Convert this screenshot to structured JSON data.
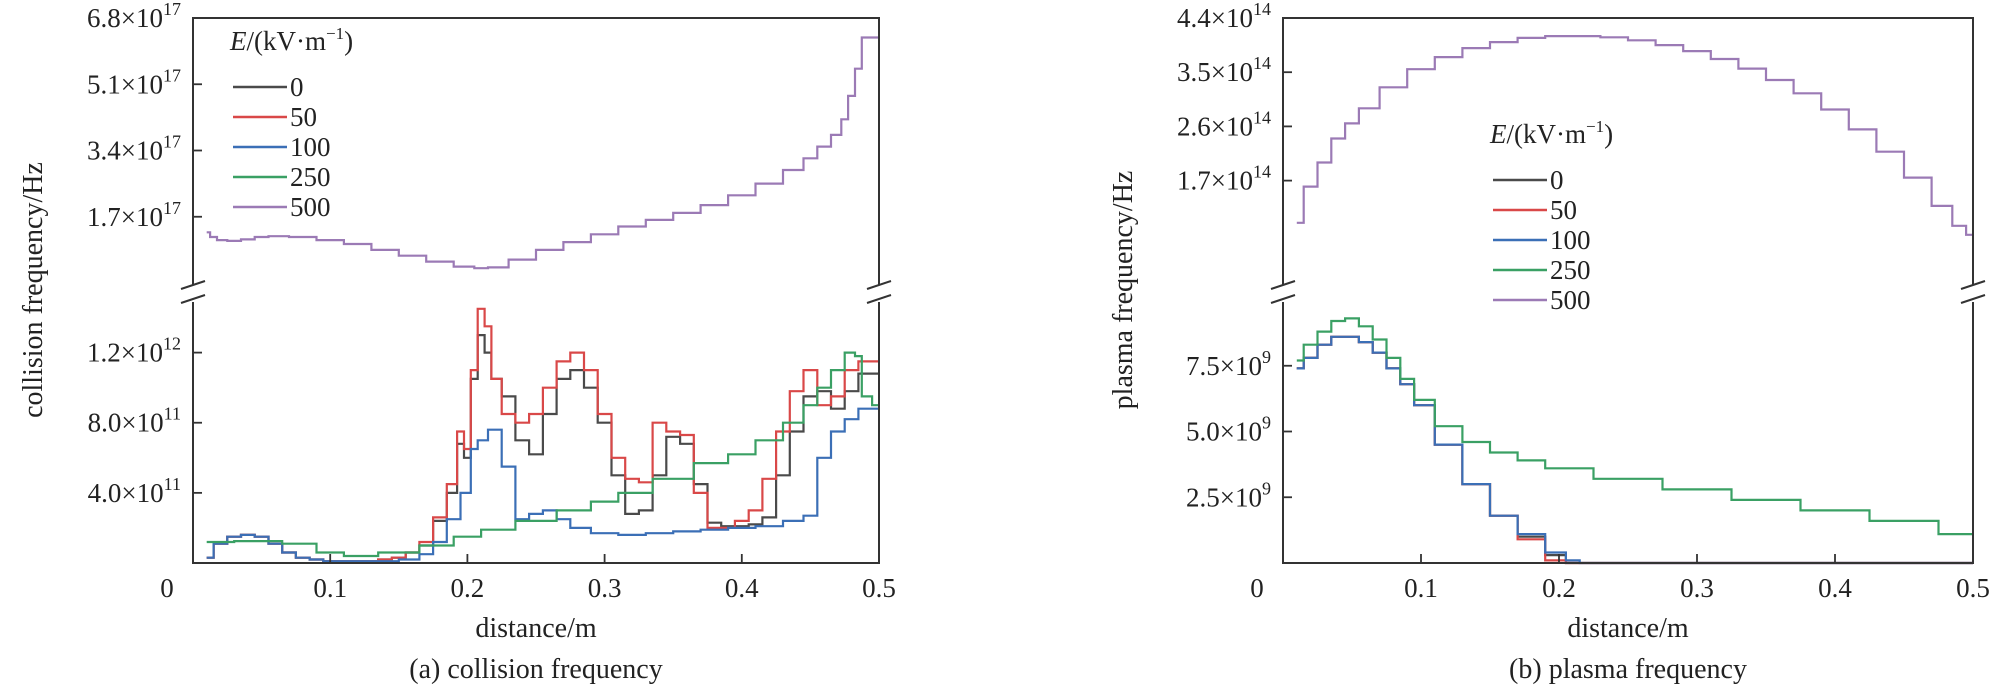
{
  "chart_data": [
    {
      "type": "line",
      "caption": "(a) collision frequency",
      "xlabel": "distance/m",
      "ylabel": "collision frequency/Hz",
      "xlim": [
        0,
        0.5
      ],
      "x_ticks": [
        "0",
        "0.1",
        "0.2",
        "0.3",
        "0.4",
        "0.5"
      ],
      "y_axis_break": true,
      "upper": {
        "ylim": [
          0,
          6.8e+17
        ],
        "y_ticks": [
          {
            "m": "1.7",
            "e": "17"
          },
          {
            "m": "3.4",
            "e": "17"
          },
          {
            "m": "5.1",
            "e": "17"
          },
          {
            "m": "6.8",
            "e": "17"
          }
        ]
      },
      "lower": {
        "ylim": [
          0,
          1500000000000.0
        ],
        "y_ticks": [
          {
            "m": "4.0",
            "e": "11"
          },
          {
            "m": "8.0",
            "e": "11"
          },
          {
            "m": "1.2",
            "e": "12"
          }
        ]
      },
      "legend": {
        "title_var": "E",
        "title_unit": "/(kV·m",
        "title_exp": "−1",
        "title_close": ")",
        "placement": "top-left"
      },
      "series": [
        {
          "name": "0",
          "color": "#4a4a4a",
          "panel": "lower",
          "x": [
            0.01,
            0.02,
            0.03,
            0.04,
            0.05,
            0.06,
            0.07,
            0.08,
            0.09,
            0.1,
            0.11,
            0.12,
            0.13,
            0.14,
            0.15,
            0.16,
            0.17,
            0.18,
            0.19,
            0.195,
            0.2,
            0.205,
            0.21,
            0.215,
            0.22,
            0.23,
            0.24,
            0.25,
            0.26,
            0.27,
            0.28,
            0.29,
            0.3,
            0.31,
            0.32,
            0.33,
            0.34,
            0.35,
            0.36,
            0.37,
            0.38,
            0.39,
            0.4,
            0.41,
            0.42,
            0.43,
            0.44,
            0.45,
            0.46,
            0.47,
            0.48,
            0.49,
            0.5
          ],
          "y": [
            30000000000.0,
            110000000000.0,
            150000000000.0,
            160000000000.0,
            150000000000.0,
            110000000000.0,
            60000000000.0,
            30000000000.0,
            20000000000.0,
            10000000000.0,
            10000000000.0,
            10000000000.0,
            10000000000.0,
            20000000000.0,
            30000000000.0,
            60000000000.0,
            100000000000.0,
            240000000000.0,
            400000000000.0,
            680000000000.0,
            600000000000.0,
            1050000000000.0,
            1300000000000.0,
            1200000000000.0,
            1050000000000.0,
            950000000000.0,
            700000000000.0,
            620000000000.0,
            850000000000.0,
            1050000000000.0,
            1100000000000.0,
            1000000000000.0,
            800000000000.0,
            500000000000.0,
            280000000000.0,
            300000000000.0,
            500000000000.0,
            720000000000.0,
            680000000000.0,
            450000000000.0,
            230000000000.0,
            210000000000.0,
            210000000000.0,
            220000000000.0,
            260000000000.0,
            500000000000.0,
            750000000000.0,
            950000000000.0,
            980000000000.0,
            880000000000.0,
            980000000000.0,
            1080000000000.0,
            1080000000000.0
          ]
        },
        {
          "name": "50",
          "color": "#d94848",
          "panel": "lower",
          "x": [
            0.01,
            0.02,
            0.03,
            0.04,
            0.05,
            0.06,
            0.07,
            0.08,
            0.09,
            0.1,
            0.11,
            0.12,
            0.13,
            0.14,
            0.15,
            0.16,
            0.17,
            0.18,
            0.19,
            0.195,
            0.2,
            0.205,
            0.21,
            0.215,
            0.22,
            0.23,
            0.24,
            0.25,
            0.26,
            0.27,
            0.28,
            0.29,
            0.3,
            0.31,
            0.32,
            0.33,
            0.34,
            0.35,
            0.36,
            0.37,
            0.38,
            0.39,
            0.4,
            0.41,
            0.42,
            0.43,
            0.44,
            0.45,
            0.46,
            0.47,
            0.48,
            0.49,
            0.5
          ],
          "y": [
            30000000000.0,
            110000000000.0,
            150000000000.0,
            160000000000.0,
            150000000000.0,
            110000000000.0,
            60000000000.0,
            30000000000.0,
            20000000000.0,
            10000000000.0,
            10000000000.0,
            10000000000.0,
            10000000000.0,
            20000000000.0,
            30000000000.0,
            60000000000.0,
            120000000000.0,
            260000000000.0,
            450000000000.0,
            750000000000.0,
            650000000000.0,
            1100000000000.0,
            1450000000000.0,
            1350000000000.0,
            1050000000000.0,
            850000000000.0,
            800000000000.0,
            850000000000.0,
            1000000000000.0,
            1150000000000.0,
            1200000000000.0,
            1100000000000.0,
            850000000000.0,
            600000000000.0,
            480000000000.0,
            460000000000.0,
            800000000000.0,
            750000000000.0,
            730000000000.0,
            400000000000.0,
            200000000000.0,
            200000000000.0,
            240000000000.0,
            300000000000.0,
            480000000000.0,
            750000000000.0,
            980000000000.0,
            1100000000000.0,
            900000000000.0,
            950000000000.0,
            1100000000000.0,
            1150000000000.0,
            1150000000000.0
          ]
        },
        {
          "name": "100",
          "color": "#3b6fb6",
          "panel": "lower",
          "x": [
            0.01,
            0.02,
            0.03,
            0.04,
            0.05,
            0.06,
            0.07,
            0.08,
            0.09,
            0.1,
            0.12,
            0.14,
            0.16,
            0.17,
            0.18,
            0.19,
            0.2,
            0.205,
            0.21,
            0.22,
            0.23,
            0.24,
            0.25,
            0.26,
            0.27,
            0.28,
            0.3,
            0.32,
            0.34,
            0.36,
            0.38,
            0.4,
            0.42,
            0.44,
            0.45,
            0.46,
            0.47,
            0.48,
            0.49,
            0.5
          ],
          "y": [
            30000000000.0,
            110000000000.0,
            150000000000.0,
            160000000000.0,
            150000000000.0,
            110000000000.0,
            60000000000.0,
            30000000000.0,
            20000000000.0,
            10000000000.0,
            10000000000.0,
            10000000000.0,
            20000000000.0,
            50000000000.0,
            120000000000.0,
            250000000000.0,
            400000000000.0,
            650000000000.0,
            700000000000.0,
            760000000000.0,
            550000000000.0,
            250000000000.0,
            280000000000.0,
            300000000000.0,
            250000000000.0,
            200000000000.0,
            170000000000.0,
            160000000000.0,
            170000000000.0,
            180000000000.0,
            190000000000.0,
            200000000000.0,
            210000000000.0,
            240000000000.0,
            270000000000.0,
            600000000000.0,
            750000000000.0,
            820000000000.0,
            880000000000.0,
            880000000000.0
          ]
        },
        {
          "name": "250",
          "color": "#3aa064",
          "panel": "lower",
          "x": [
            0.01,
            0.05,
            0.08,
            0.1,
            0.12,
            0.15,
            0.18,
            0.2,
            0.22,
            0.25,
            0.28,
            0.3,
            0.32,
            0.35,
            0.38,
            0.4,
            0.42,
            0.44,
            0.45,
            0.46,
            0.47,
            0.48,
            0.485,
            0.49,
            0.5
          ],
          "y": [
            120000000000.0,
            125000000000.0,
            110000000000.0,
            60000000000.0,
            40000000000.0,
            60000000000.0,
            100000000000.0,
            150000000000.0,
            190000000000.0,
            240000000000.0,
            300000000000.0,
            350000000000.0,
            400000000000.0,
            480000000000.0,
            570000000000.0,
            620000000000.0,
            700000000000.0,
            800000000000.0,
            900000000000.0,
            1000000000000.0,
            1100000000000.0,
            1200000000000.0,
            1180000000000.0,
            950000000000.0,
            900000000000.0
          ]
        },
        {
          "name": "500",
          "color": "#9b7ab5",
          "panel": "upper",
          "x": [
            0.01,
            0.015,
            0.02,
            0.03,
            0.04,
            0.05,
            0.06,
            0.08,
            0.1,
            0.12,
            0.14,
            0.16,
            0.18,
            0.2,
            0.21,
            0.22,
            0.24,
            0.26,
            0.28,
            0.3,
            0.32,
            0.34,
            0.36,
            0.38,
            0.4,
            0.42,
            0.44,
            0.45,
            0.46,
            0.47,
            0.475,
            0.48,
            0.485,
            0.49,
            0.5
          ],
          "y": [
            1.3e+17,
            1.18e+17,
            1.1e+17,
            1.08e+17,
            1.12e+17,
            1.18e+17,
            1.2e+17,
            1.18e+17,
            1.1e+17,
            1e+17,
            8.5e+16,
            7e+16,
            5.5e+16,
            4.2e+16,
            3.8e+16,
            4e+16,
            6e+16,
            8.5e+16,
            1.05e+17,
            1.25e+17,
            1.45e+17,
            1.62e+17,
            1.8e+17,
            2e+17,
            2.25e+17,
            2.55e+17,
            2.9e+17,
            3.2e+17,
            3.5e+17,
            3.8e+17,
            4.2e+17,
            4.8e+17,
            5.5e+17,
            6.3e+17,
            6.3e+17
          ]
        }
      ]
    },
    {
      "type": "line",
      "caption": "(b) plasma frequency",
      "xlabel": "distance/m",
      "ylabel": "plasma frequency/Hz",
      "xlim": [
        0,
        0.5
      ],
      "x_ticks": [
        "0",
        "0.1",
        "0.2",
        "0.3",
        "0.4",
        "0.5"
      ],
      "y_axis_break": true,
      "upper": {
        "ylim": [
          0,
          440000000000000.0
        ],
        "y_ticks": [
          {
            "m": "1.7",
            "e": "14"
          },
          {
            "m": "2.6",
            "e": "14"
          },
          {
            "m": "3.5",
            "e": "14"
          },
          {
            "m": "4.4",
            "e": "14"
          }
        ]
      },
      "lower": {
        "ylim": [
          0,
          10000000000.0
        ],
        "y_ticks": [
          {
            "m": "2.5",
            "e": "9"
          },
          {
            "m": "5.0",
            "e": "9"
          },
          {
            "m": "7.5",
            "e": "9"
          }
        ]
      },
      "legend": {
        "title_var": "E",
        "title_unit": "/(kV·m",
        "title_exp": "−1",
        "title_close": ")",
        "placement": "center"
      },
      "series": [
        {
          "name": "0",
          "color": "#4a4a4a",
          "panel": "lower",
          "x": [
            0.01,
            0.02,
            0.03,
            0.04,
            0.05,
            0.06,
            0.07,
            0.08,
            0.09,
            0.1,
            0.12,
            0.14,
            0.16,
            0.18,
            0.2,
            0.21,
            0.22,
            0.25,
            0.3,
            0.4,
            0.5
          ],
          "y": [
            7400000000.0,
            7800000000.0,
            8300000000.0,
            8600000000.0,
            8600000000.0,
            8400000000.0,
            8000000000.0,
            7400000000.0,
            6800000000.0,
            6000000000.0,
            4500000000.0,
            3000000000.0,
            1800000000.0,
            1000000000.0,
            300000000.0,
            0,
            0,
            0,
            0,
            0,
            0
          ]
        },
        {
          "name": "50",
          "color": "#d94848",
          "panel": "lower",
          "x": [
            0.01,
            0.02,
            0.03,
            0.04,
            0.05,
            0.06,
            0.07,
            0.08,
            0.09,
            0.1,
            0.12,
            0.14,
            0.16,
            0.18,
            0.2,
            0.21,
            0.22,
            0.25,
            0.3,
            0.4,
            0.5
          ],
          "y": [
            7400000000.0,
            7800000000.0,
            8300000000.0,
            8600000000.0,
            8600000000.0,
            8400000000.0,
            8000000000.0,
            7400000000.0,
            6800000000.0,
            6000000000.0,
            4500000000.0,
            3000000000.0,
            1800000000.0,
            900000000.0,
            100000000.0,
            0,
            0,
            0,
            0,
            0,
            0
          ]
        },
        {
          "name": "100",
          "color": "#3b6fb6",
          "panel": "lower",
          "x": [
            0.01,
            0.02,
            0.03,
            0.04,
            0.05,
            0.06,
            0.07,
            0.08,
            0.09,
            0.1,
            0.12,
            0.14,
            0.16,
            0.18,
            0.2,
            0.21,
            0.22,
            0.25,
            0.3,
            0.4,
            0.5
          ],
          "y": [
            7400000000.0,
            7800000000.0,
            8300000000.0,
            8600000000.0,
            8600000000.0,
            8400000000.0,
            8000000000.0,
            7400000000.0,
            6800000000.0,
            6000000000.0,
            4500000000.0,
            3000000000.0,
            1800000000.0,
            1100000000.0,
            400000000.0,
            100000000.0,
            0,
            0,
            0,
            0,
            0
          ]
        },
        {
          "name": "250",
          "color": "#3aa064",
          "panel": "lower",
          "x": [
            0.01,
            0.02,
            0.03,
            0.04,
            0.05,
            0.06,
            0.07,
            0.08,
            0.09,
            0.1,
            0.12,
            0.14,
            0.16,
            0.18,
            0.2,
            0.25,
            0.3,
            0.35,
            0.4,
            0.45,
            0.5
          ],
          "y": [
            7700000000.0,
            8300000000.0,
            8800000000.0,
            9200000000.0,
            9300000000.0,
            9000000000.0,
            8500000000.0,
            7800000000.0,
            7000000000.0,
            6200000000.0,
            5200000000.0,
            4600000000.0,
            4200000000.0,
            3900000000.0,
            3600000000.0,
            3200000000.0,
            2800000000.0,
            2400000000.0,
            2000000000.0,
            1600000000.0,
            1100000000.0
          ]
        },
        {
          "name": "500",
          "color": "#9b7ab5",
          "panel": "upper",
          "x": [
            0.01,
            0.02,
            0.03,
            0.04,
            0.05,
            0.06,
            0.08,
            0.1,
            0.12,
            0.14,
            0.16,
            0.18,
            0.2,
            0.22,
            0.24,
            0.26,
            0.28,
            0.3,
            0.32,
            0.34,
            0.36,
            0.38,
            0.4,
            0.42,
            0.44,
            0.46,
            0.48,
            0.49,
            0.5
          ],
          "y": [
            100000000000000.0,
            160000000000000.0,
            200000000000000.0,
            240000000000000.0,
            265000000000000.0,
            290000000000000.0,
            325000000000000.0,
            355000000000000.0,
            375000000000000.0,
            390000000000000.0,
            400000000000000.0,
            407000000000000.0,
            410000000000000.0,
            410000000000000.0,
            408000000000000.0,
            403000000000000.0,
            395000000000000.0,
            385000000000000.0,
            372000000000000.0,
            356000000000000.0,
            337000000000000.0,
            315000000000000.0,
            288000000000000.0,
            255000000000000.0,
            218000000000000.0,
            175000000000000.0,
            128000000000000.0,
            95000000000000.0,
            80000000000000.0
          ]
        }
      ]
    }
  ]
}
